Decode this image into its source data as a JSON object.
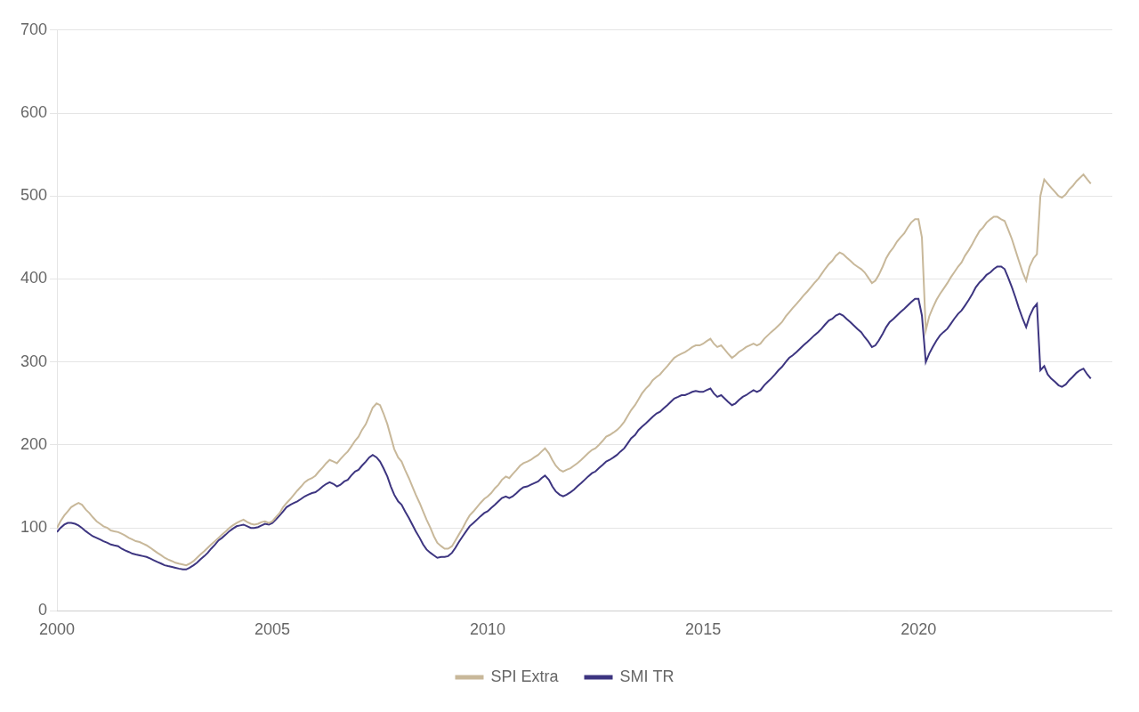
{
  "chart_data": {
    "type": "line",
    "x": [
      2000.0,
      2000.08,
      2000.17,
      2000.25,
      2000.33,
      2000.42,
      2000.5,
      2000.58,
      2000.67,
      2000.75,
      2000.83,
      2000.92,
      2001.0,
      2001.08,
      2001.17,
      2001.25,
      2001.33,
      2001.42,
      2001.5,
      2001.58,
      2001.67,
      2001.75,
      2001.83,
      2001.92,
      2002.0,
      2002.08,
      2002.17,
      2002.25,
      2002.33,
      2002.42,
      2002.5,
      2002.58,
      2002.67,
      2002.75,
      2002.83,
      2002.92,
      2003.0,
      2003.08,
      2003.17,
      2003.25,
      2003.33,
      2003.42,
      2003.5,
      2003.58,
      2003.67,
      2003.75,
      2003.83,
      2003.92,
      2004.0,
      2004.08,
      2004.17,
      2004.25,
      2004.33,
      2004.42,
      2004.5,
      2004.58,
      2004.67,
      2004.75,
      2004.83,
      2004.92,
      2005.0,
      2005.08,
      2005.17,
      2005.25,
      2005.33,
      2005.42,
      2005.5,
      2005.58,
      2005.67,
      2005.75,
      2005.83,
      2005.92,
      2006.0,
      2006.08,
      2006.17,
      2006.25,
      2006.33,
      2006.42,
      2006.5,
      2006.58,
      2006.67,
      2006.75,
      2006.83,
      2006.92,
      2007.0,
      2007.08,
      2007.17,
      2007.25,
      2007.33,
      2007.42,
      2007.5,
      2007.58,
      2007.67,
      2007.75,
      2007.83,
      2007.92,
      2008.0,
      2008.08,
      2008.17,
      2008.25,
      2008.33,
      2008.42,
      2008.5,
      2008.58,
      2008.67,
      2008.75,
      2008.83,
      2008.92,
      2009.0,
      2009.08,
      2009.17,
      2009.25,
      2009.33,
      2009.42,
      2009.5,
      2009.58,
      2009.67,
      2009.75,
      2009.83,
      2009.92,
      2010.0,
      2010.08,
      2010.17,
      2010.25,
      2010.33,
      2010.42,
      2010.5,
      2010.58,
      2010.67,
      2010.75,
      2010.83,
      2010.92,
      2011.0,
      2011.08,
      2011.17,
      2011.25,
      2011.33,
      2011.42,
      2011.5,
      2011.58,
      2011.67,
      2011.75,
      2011.83,
      2011.92,
      2012.0,
      2012.08,
      2012.17,
      2012.25,
      2012.33,
      2012.42,
      2012.5,
      2012.58,
      2012.67,
      2012.75,
      2012.83,
      2012.92,
      2013.0,
      2013.08,
      2013.17,
      2013.25,
      2013.33,
      2013.42,
      2013.5,
      2013.58,
      2013.67,
      2013.75,
      2013.83,
      2013.92,
      2014.0,
      2014.08,
      2014.17,
      2014.25,
      2014.33,
      2014.42,
      2014.5,
      2014.58,
      2014.67,
      2014.75,
      2014.83,
      2014.92,
      2015.0,
      2015.08,
      2015.17,
      2015.25,
      2015.33,
      2015.42,
      2015.5,
      2015.58,
      2015.67,
      2015.75,
      2015.83,
      2015.92,
      2016.0,
      2016.08,
      2016.17,
      2016.25,
      2016.33,
      2016.42,
      2016.5,
      2016.58,
      2016.67,
      2016.75,
      2016.83,
      2016.92,
      2017.0,
      2017.08,
      2017.17,
      2017.25,
      2017.33,
      2017.42,
      2017.5,
      2017.58,
      2017.67,
      2017.75,
      2017.83,
      2017.92,
      2018.0,
      2018.08,
      2018.17,
      2018.25,
      2018.33,
      2018.42,
      2018.5,
      2018.58,
      2018.67,
      2018.75,
      2018.83,
      2018.92,
      2019.0,
      2019.08,
      2019.17,
      2019.25,
      2019.33,
      2019.42,
      2019.5,
      2019.58,
      2019.67,
      2019.75,
      2019.83,
      2019.92,
      2020.0,
      2020.08,
      2020.17,
      2020.25,
      2020.33,
      2020.42,
      2020.5,
      2020.58,
      2020.67,
      2020.75,
      2020.83,
      2020.92,
      2021.0,
      2021.08,
      2021.17,
      2021.25,
      2021.33,
      2021.42,
      2021.5,
      2021.58,
      2021.67,
      2021.75,
      2021.83,
      2021.92,
      2022.0,
      2022.08,
      2022.17,
      2022.25,
      2022.33,
      2022.42,
      2022.5,
      2022.58,
      2022.67,
      2022.75,
      2022.83,
      2022.92,
      2023.0,
      2023.08,
      2023.17,
      2023.25,
      2023.33,
      2023.42,
      2023.5,
      2023.58,
      2023.67,
      2023.75,
      2023.83,
      2023.92,
      2024.0
    ],
    "series": [
      {
        "name": "SPI Extra",
        "color": "#C8B89A",
        "values": [
          100,
          108,
          115,
          120,
          125,
          128,
          130,
          128,
          122,
          118,
          113,
          108,
          105,
          102,
          100,
          97,
          96,
          95,
          93,
          91,
          88,
          86,
          84,
          83,
          81,
          79,
          76,
          73,
          70,
          67,
          64,
          62,
          60,
          58,
          57,
          56,
          55,
          57,
          60,
          64,
          68,
          72,
          76,
          80,
          84,
          88,
          92,
          96,
          100,
          103,
          106,
          108,
          110,
          107,
          105,
          104,
          105,
          107,
          108,
          106,
          108,
          113,
          118,
          125,
          130,
          135,
          140,
          145,
          150,
          155,
          158,
          160,
          163,
          168,
          173,
          178,
          182,
          180,
          178,
          183,
          188,
          192,
          198,
          205,
          210,
          218,
          225,
          235,
          245,
          250,
          248,
          238,
          225,
          210,
          195,
          185,
          180,
          170,
          160,
          150,
          140,
          130,
          120,
          110,
          100,
          90,
          82,
          78,
          75,
          75,
          78,
          85,
          92,
          100,
          108,
          115,
          120,
          125,
          130,
          135,
          138,
          142,
          148,
          152,
          158,
          162,
          160,
          165,
          170,
          175,
          178,
          180,
          182,
          185,
          188,
          192,
          196,
          190,
          182,
          175,
          170,
          168,
          170,
          172,
          175,
          178,
          182,
          186,
          190,
          194,
          196,
          200,
          205,
          210,
          212,
          215,
          218,
          222,
          228,
          235,
          242,
          248,
          255,
          262,
          268,
          272,
          278,
          282,
          285,
          290,
          295,
          300,
          305,
          308,
          310,
          312,
          315,
          318,
          320,
          320,
          322,
          325,
          328,
          322,
          318,
          320,
          315,
          310,
          305,
          308,
          312,
          315,
          318,
          320,
          322,
          320,
          322,
          328,
          332,
          336,
          340,
          344,
          348,
          355,
          360,
          365,
          370,
          375,
          380,
          385,
          390,
          395,
          400,
          406,
          412,
          418,
          422,
          428,
          432,
          430,
          426,
          422,
          418,
          415,
          412,
          408,
          402,
          395,
          398,
          405,
          415,
          425,
          432,
          438,
          445,
          450,
          455,
          462,
          468,
          472,
          472,
          450,
          338,
          355,
          365,
          375,
          382,
          388,
          395,
          402,
          408,
          415,
          420,
          428,
          435,
          442,
          450,
          458,
          462,
          468,
          472,
          475,
          475,
          472,
          470,
          460,
          448,
          435,
          422,
          408,
          398,
          415,
          425,
          430,
          500,
          520,
          515,
          510,
          505,
          500,
          498,
          502,
          508,
          512,
          518,
          522,
          526,
          520,
          515
        ]
      },
      {
        "name": "SMI TR",
        "color": "#3D3580",
        "values": [
          95,
          100,
          104,
          106,
          106,
          105,
          103,
          100,
          96,
          93,
          90,
          88,
          86,
          84,
          82,
          80,
          79,
          78,
          75,
          73,
          71,
          69,
          68,
          67,
          66,
          65,
          63,
          61,
          59,
          57,
          55,
          54,
          53,
          52,
          51,
          50,
          50,
          52,
          55,
          58,
          62,
          66,
          70,
          75,
          80,
          85,
          88,
          92,
          96,
          99,
          102,
          103,
          104,
          102,
          100,
          100,
          101,
          103,
          105,
          104,
          106,
          110,
          115,
          120,
          125,
          128,
          130,
          132,
          135,
          138,
          140,
          142,
          143,
          146,
          150,
          153,
          155,
          153,
          150,
          152,
          156,
          158,
          163,
          168,
          170,
          175,
          180,
          185,
          188,
          185,
          180,
          172,
          162,
          150,
          140,
          132,
          128,
          120,
          112,
          104,
          96,
          88,
          80,
          74,
          70,
          67,
          64,
          65,
          65,
          66,
          70,
          76,
          83,
          90,
          96,
          102,
          106,
          110,
          114,
          118,
          120,
          124,
          128,
          132,
          136,
          138,
          136,
          138,
          142,
          146,
          149,
          150,
          152,
          154,
          156,
          160,
          163,
          158,
          150,
          144,
          140,
          138,
          140,
          143,
          146,
          150,
          154,
          158,
          162,
          166,
          168,
          172,
          176,
          180,
          182,
          185,
          188,
          192,
          196,
          202,
          208,
          212,
          218,
          222,
          226,
          230,
          234,
          238,
          240,
          244,
          248,
          252,
          256,
          258,
          260,
          260,
          262,
          264,
          265,
          264,
          264,
          266,
          268,
          262,
          258,
          260,
          256,
          252,
          248,
          250,
          254,
          258,
          260,
          263,
          266,
          264,
          266,
          272,
          276,
          280,
          285,
          290,
          294,
          300,
          305,
          308,
          312,
          316,
          320,
          324,
          328,
          332,
          336,
          340,
          345,
          350,
          352,
          356,
          358,
          356,
          352,
          348,
          344,
          340,
          336,
          330,
          325,
          318,
          320,
          326,
          334,
          342,
          348,
          352,
          356,
          360,
          364,
          368,
          372,
          376,
          376,
          356,
          300,
          310,
          318,
          326,
          332,
          336,
          340,
          346,
          352,
          358,
          362,
          368,
          375,
          382,
          390,
          396,
          400,
          405,
          408,
          412,
          415,
          415,
          412,
          402,
          390,
          378,
          365,
          352,
          342,
          355,
          365,
          370,
          290,
          295,
          285,
          280,
          276,
          272,
          270,
          273,
          278,
          282,
          287,
          290,
          292,
          285,
          280
        ]
      }
    ],
    "xlim": [
      2000,
      2024.5
    ],
    "xticks": [
      2000,
      2005,
      2010,
      2015,
      2020
    ],
    "ylim": [
      0,
      700
    ],
    "yticks": [
      0,
      100,
      200,
      300,
      400,
      500,
      600,
      700
    ],
    "grid": "y",
    "legend": "bottom"
  }
}
